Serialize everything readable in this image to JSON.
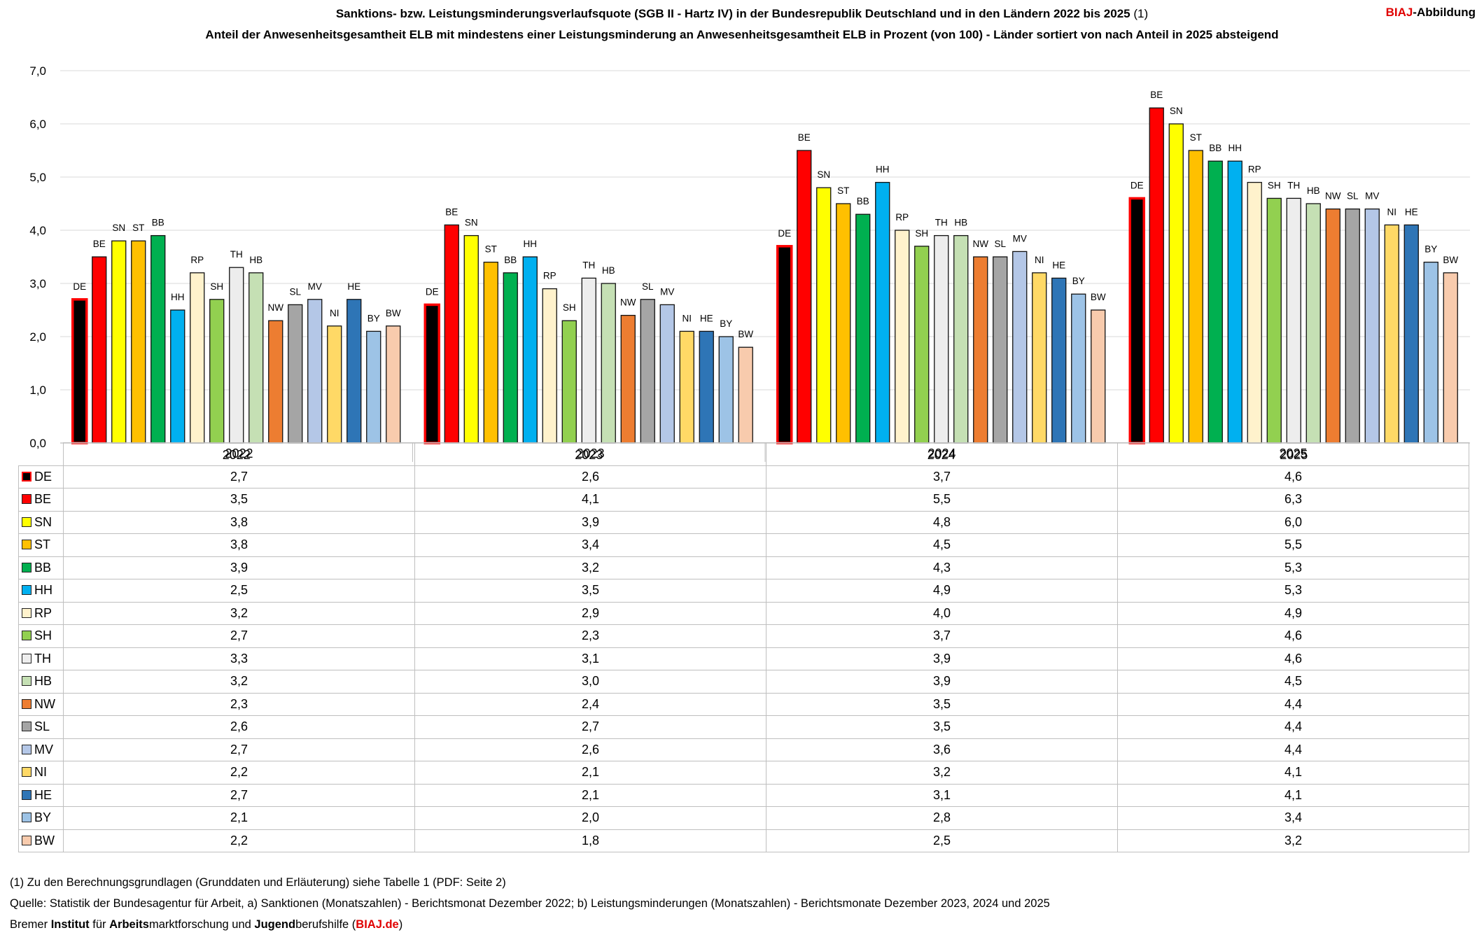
{
  "header": {
    "title": "Sanktions- bzw. Leistungsminderungsverlaufsquote (SGB II - Hartz IV) in der Bundesrepublik Deutschland und in den Ländern 2022 bis 2025",
    "title_note": "(1)",
    "subtitle": "Anteil der Anwesenheitsgesamtheit ELB mit mindestens einer Leistungsminderung an  Anwesenheitsgesamtheit ELB in Prozent (von 100) - Länder sortiert von nach Anteil in 2025 absteigend",
    "brand_red": "BIAJ",
    "brand_rest": "-Abbildung"
  },
  "footer": {
    "note": "(1) Zu den Berechnungsgrundlagen (Grunddaten und Erläuterung) siehe Tabelle 1 (PDF: Seite 2)",
    "source": "Quelle: Statistik der Bundesagentur für Arbeit, a) Sanktionen (Monatszahlen) - Berichtsmonat Dezember 2022; b) Leistungsminderungen (Monatszahlen) - Berichtsmonate Dezember 2023, 2024 und 2025",
    "institute_parts": [
      "Bremer ",
      "Institut",
      " für ",
      "Arbeits",
      "marktforschung und ",
      "Jugend",
      "berufshilfe ("
    ],
    "institute_link": "BIAJ.de",
    "institute_end": ")"
  },
  "chart_data": {
    "type": "bar",
    "categories": [
      "2022",
      "2023",
      "2024",
      "2025"
    ],
    "ylim": [
      0,
      7
    ],
    "yticks": [
      "0,0",
      "1,0",
      "2,0",
      "3,0",
      "4,0",
      "5,0",
      "6,0",
      "7,0"
    ],
    "grid": true,
    "legend": "table below chart",
    "series": [
      {
        "name": "DE",
        "color": "#000000",
        "border": "#ff0000",
        "values": [
          2.7,
          2.6,
          3.7,
          4.6
        ],
        "labels": [
          "2,7",
          "2,6",
          "3,7",
          "4,6"
        ]
      },
      {
        "name": "BE",
        "color": "#ff0000",
        "values": [
          3.5,
          4.1,
          5.5,
          6.3
        ],
        "labels": [
          "3,5",
          "4,1",
          "5,5",
          "6,3"
        ]
      },
      {
        "name": "SN",
        "color": "#ffff00",
        "values": [
          3.8,
          3.9,
          4.8,
          6.0
        ],
        "labels": [
          "3,8",
          "3,9",
          "4,8",
          "6,0"
        ]
      },
      {
        "name": "ST",
        "color": "#ffc000",
        "values": [
          3.8,
          3.4,
          4.5,
          5.5
        ],
        "labels": [
          "3,8",
          "3,4",
          "4,5",
          "5,5"
        ]
      },
      {
        "name": "BB",
        "color": "#00b050",
        "values": [
          3.9,
          3.2,
          4.3,
          5.3
        ],
        "labels": [
          "3,9",
          "3,2",
          "4,3",
          "5,3"
        ]
      },
      {
        "name": "HH",
        "color": "#00b0f0",
        "values": [
          2.5,
          3.5,
          4.9,
          5.3
        ],
        "labels": [
          "2,5",
          "3,5",
          "4,9",
          "5,3"
        ]
      },
      {
        "name": "RP",
        "color": "#fff2cc",
        "values": [
          3.2,
          2.9,
          4.0,
          4.9
        ],
        "labels": [
          "3,2",
          "2,9",
          "4,0",
          "4,9"
        ]
      },
      {
        "name": "SH",
        "color": "#92d050",
        "values": [
          2.7,
          2.3,
          3.7,
          4.6
        ],
        "labels": [
          "2,7",
          "2,3",
          "3,7",
          "4,6"
        ]
      },
      {
        "name": "TH",
        "color": "#ededed",
        "values": [
          3.3,
          3.1,
          3.9,
          4.6
        ],
        "labels": [
          "3,3",
          "3,1",
          "3,9",
          "4,6"
        ]
      },
      {
        "name": "HB",
        "color": "#c5e0b4",
        "values": [
          3.2,
          3.0,
          3.9,
          4.5
        ],
        "labels": [
          "3,2",
          "3,0",
          "3,9",
          "4,5"
        ]
      },
      {
        "name": "NW",
        "color": "#ed7d31",
        "values": [
          2.3,
          2.4,
          3.5,
          4.4
        ],
        "labels": [
          "2,3",
          "2,4",
          "3,5",
          "4,4"
        ]
      },
      {
        "name": "SL",
        "color": "#a5a5a5",
        "values": [
          2.6,
          2.7,
          3.5,
          4.4
        ],
        "labels": [
          "2,6",
          "2,7",
          "3,5",
          "4,4"
        ]
      },
      {
        "name": "MV",
        "color": "#b4c7e7",
        "values": [
          2.7,
          2.6,
          3.6,
          4.4
        ],
        "labels": [
          "2,7",
          "2,6",
          "3,6",
          "4,4"
        ]
      },
      {
        "name": "NI",
        "color": "#ffd966",
        "values": [
          2.2,
          2.1,
          3.2,
          4.1
        ],
        "labels": [
          "2,2",
          "2,1",
          "3,2",
          "4,1"
        ]
      },
      {
        "name": "HE",
        "color": "#2e75b6",
        "values": [
          2.7,
          2.1,
          3.1,
          4.1
        ],
        "labels": [
          "2,7",
          "2,1",
          "3,1",
          "4,1"
        ]
      },
      {
        "name": "BY",
        "color": "#9dc3e6",
        "values": [
          2.1,
          2.0,
          2.8,
          3.4
        ],
        "labels": [
          "2,1",
          "2,0",
          "2,8",
          "3,4"
        ]
      },
      {
        "name": "BW",
        "color": "#f8cbad",
        "values": [
          2.2,
          1.8,
          2.5,
          3.2
        ],
        "labels": [
          "2,2",
          "1,8",
          "2,5",
          "3,2"
        ]
      }
    ]
  }
}
